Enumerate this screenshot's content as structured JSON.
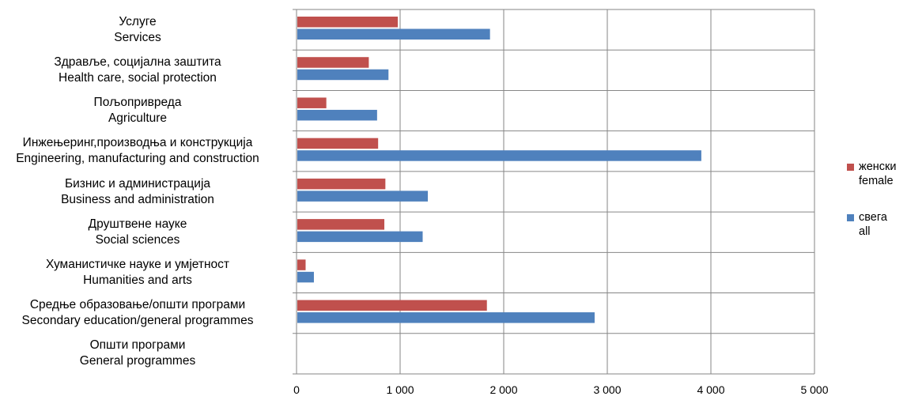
{
  "chart_data": {
    "type": "bar",
    "orientation": "horizontal",
    "categories": [
      {
        "line1": "Услуге",
        "line2": "Services"
      },
      {
        "line1": "Здравље, социјална заштита",
        "line2": "Health care, social protection"
      },
      {
        "line1": "Пољопривреда",
        "line2": "Agriculture"
      },
      {
        "line1": "Инжењеринг,производња и конструкција",
        "line2": "Engineering, manufacturing and construction"
      },
      {
        "line1": "Бизнис и администрација",
        "line2": "Business and administration"
      },
      {
        "line1": "Друштвене науке",
        "line2": "Social sciences"
      },
      {
        "line1": "Хуманистичке науке и умјетност",
        "line2": "Humanities and arts"
      },
      {
        "line1": "Средње образовање/општи програми",
        "line2": "Secondary education/general programmes"
      },
      {
        "line1": "Општи програми",
        "line2": "General programmes"
      }
    ],
    "series": [
      {
        "name": "женски",
        "name2": "female",
        "color": "#c0504d",
        "values": [
          970,
          690,
          280,
          780,
          850,
          840,
          80,
          1830,
          0
        ]
      },
      {
        "name": "свега",
        "name2": "all",
        "color": "#4f81bd",
        "values": [
          1860,
          880,
          770,
          3900,
          1260,
          1210,
          160,
          2870,
          0
        ]
      }
    ],
    "xlim": [
      0,
      5000
    ],
    "xticks": [
      "0",
      "1 000",
      "2 000",
      "3 000",
      "4 000",
      "5 000"
    ],
    "grid": true,
    "legend_position": "right"
  }
}
